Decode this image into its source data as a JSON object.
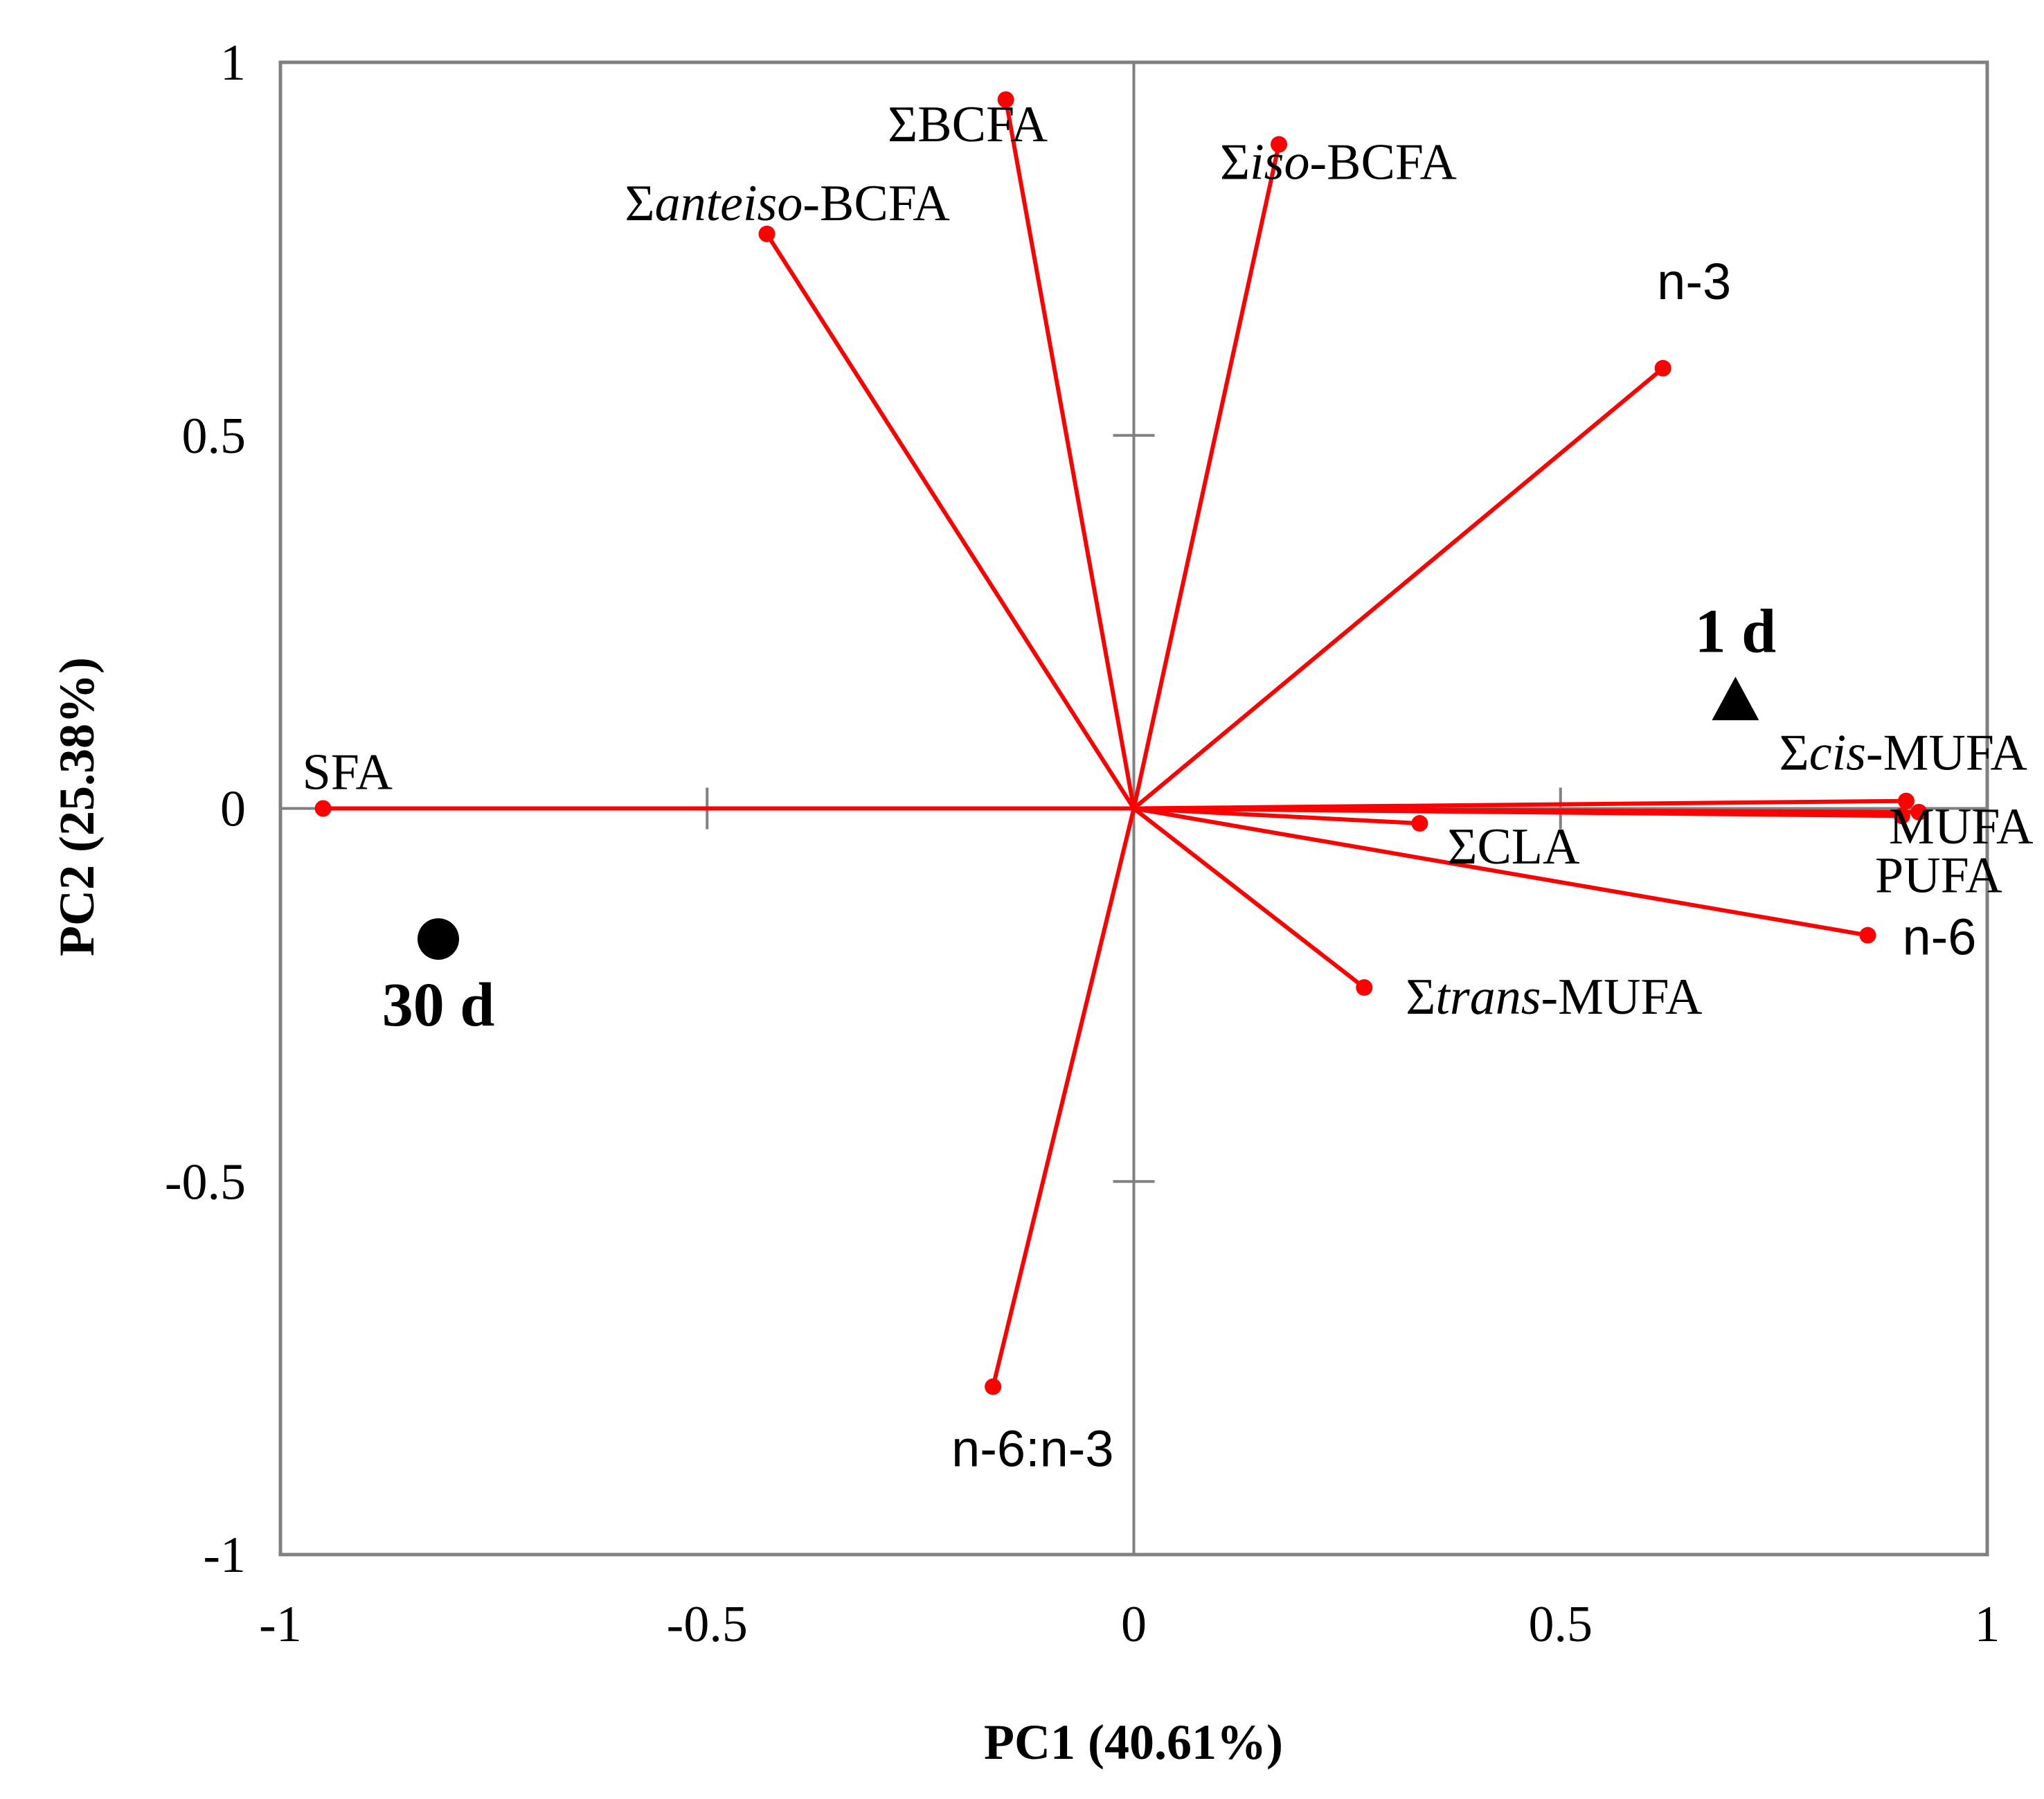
{
  "chart_data": {
    "type": "scatter",
    "subtype": "pca-biplot",
    "xlabel": "PC1 (40.61%)",
    "ylabel": "PC2 (25.38%)",
    "xlim": [
      -1,
      1
    ],
    "ylim": [
      -1,
      1
    ],
    "xticks": [
      -1,
      -0.5,
      0,
      0.5,
      1
    ],
    "yticks": [
      -1,
      -0.5,
      0,
      0.5,
      1
    ],
    "x_tick_labels": [
      "-1",
      "-0.5",
      "0",
      "0.5",
      "1"
    ],
    "y_tick_labels": [
      "-1",
      "-0.5",
      "0",
      "0.5",
      "1"
    ],
    "grid": false,
    "zero_lines": true,
    "loading_color": "#ff0000",
    "observation_color": "#000000",
    "frame_color": "#808080",
    "loadings": [
      {
        "label": "ΣBCFA",
        "parts": [
          {
            "text": "ΣBCFA",
            "italic": false
          }
        ],
        "x": -0.15,
        "y": 0.95,
        "label_anchor": "middle",
        "sans": false
      },
      {
        "label": "Σiso-BCFA",
        "parts": [
          {
            "text": "Σ",
            "italic": false
          },
          {
            "text": "iso",
            "italic": true
          },
          {
            "text": "-BCFA",
            "italic": false
          }
        ],
        "x": 0.17,
        "y": 0.89,
        "label_anchor": "start",
        "sans": false
      },
      {
        "label": "Σanteiso-BCFA",
        "parts": [
          {
            "text": "Σ",
            "italic": false
          },
          {
            "text": "anteiso",
            "italic": true
          },
          {
            "text": "-BCFA",
            "italic": false
          }
        ],
        "x": -0.43,
        "y": 0.77,
        "label_anchor": "start",
        "sans": false
      },
      {
        "label": "n-3",
        "parts": [
          {
            "text": "n-3",
            "italic": false
          }
        ],
        "x": 0.62,
        "y": 0.59,
        "label_anchor": "middle",
        "sans": true
      },
      {
        "label": "SFA",
        "parts": [
          {
            "text": "SFA",
            "italic": false
          }
        ],
        "x": -0.95,
        "y": 0.0,
        "label_anchor": "start",
        "sans": false
      },
      {
        "label": "Σcis-MUFA",
        "parts": [
          {
            "text": "Σ",
            "italic": false
          },
          {
            "text": "cis",
            "italic": true
          },
          {
            "text": "-MUFA",
            "italic": false
          }
        ],
        "x": 0.905,
        "y": 0.01,
        "label_anchor": "end",
        "sans": false
      },
      {
        "label": "MUFA",
        "parts": [
          {
            "text": "MUFA",
            "italic": false
          }
        ],
        "x": 0.92,
        "y": -0.005,
        "label_anchor": "end",
        "sans": false
      },
      {
        "label": "PUFA",
        "parts": [
          {
            "text": "PUFA",
            "italic": false
          }
        ],
        "x": 0.9,
        "y": -0.01,
        "label_anchor": "end",
        "sans": false
      },
      {
        "label": "ΣCLA",
        "parts": [
          {
            "text": "ΣCLA",
            "italic": false
          }
        ],
        "x": 0.335,
        "y": -0.02,
        "label_anchor": "start",
        "sans": false
      },
      {
        "label": "n-6",
        "parts": [
          {
            "text": "n-6",
            "italic": false
          }
        ],
        "x": 0.86,
        "y": -0.17,
        "label_anchor": "start",
        "sans": true
      },
      {
        "label": "Σtrans-MUFA",
        "parts": [
          {
            "text": "Σ",
            "italic": false
          },
          {
            "text": "trans",
            "italic": true
          },
          {
            "text": "-MUFA",
            "italic": false
          }
        ],
        "x": 0.27,
        "y": -0.24,
        "label_anchor": "start",
        "sans": false
      },
      {
        "label": "n-6:n-3",
        "parts": [
          {
            "text": "n-6:n-3",
            "italic": false
          }
        ],
        "x": -0.165,
        "y": -0.775,
        "label_anchor": "start",
        "sans": true
      }
    ],
    "observations": [
      {
        "label": "1 d",
        "marker": "triangle",
        "x": 0.705,
        "y": 0.145
      },
      {
        "label": "30 d",
        "marker": "circle",
        "x": -0.815,
        "y": -0.175
      }
    ]
  }
}
